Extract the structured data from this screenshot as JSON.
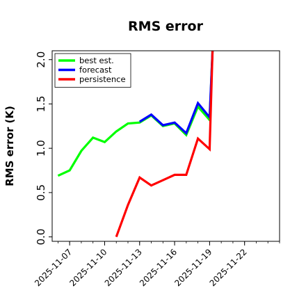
{
  "chart_data": {
    "type": "line",
    "title": "RMS error",
    "xlabel": "",
    "ylabel": "RMS error (K)",
    "ylim": [
      -0.05,
      2.1
    ],
    "xlim": [
      "2025-11-05T12:00",
      "2025-11-25T00:00"
    ],
    "yticks": [
      0.0,
      0.5,
      1.0,
      1.5,
      2.0
    ],
    "ytick_labels": [
      "0.0",
      "0.5",
      "1.0",
      "1.5",
      "2.0"
    ],
    "xticks": [
      "2025-11-07",
      "2025-11-10",
      "2025-11-13",
      "2025-11-16",
      "2025-11-19",
      "2025-11-22"
    ],
    "xtick_labels": [
      "2025-11-07",
      "2025-11-10",
      "2025-11-13",
      "2025-11-16",
      "2025-11-19",
      "2025-11-22"
    ],
    "highlighted_xtick": "2025-11-13",
    "highlight_color": "#228B22",
    "grid": false,
    "legend": "top-left",
    "series": [
      {
        "name": "best est.",
        "color": "#00ff00",
        "points": [
          [
            "2025-11-06T00:00",
            0.69
          ],
          [
            "2025-11-07T00:00",
            0.75
          ],
          [
            "2025-11-08T00:00",
            0.97
          ],
          [
            "2025-11-09T00:00",
            1.12
          ],
          [
            "2025-11-10T00:00",
            1.07
          ],
          [
            "2025-11-11T00:00",
            1.19
          ],
          [
            "2025-11-12T00:00",
            1.28
          ],
          [
            "2025-11-13T00:00",
            1.29
          ],
          [
            "2025-11-14T00:00",
            1.37
          ],
          [
            "2025-11-15T00:00",
            1.25
          ],
          [
            "2025-11-16T00:00",
            1.28
          ],
          [
            "2025-11-17T00:00",
            1.15
          ],
          [
            "2025-11-18T00:00",
            1.47
          ],
          [
            "2025-11-19T00:00",
            1.32
          ],
          [
            "2025-11-19T06:00",
            2.1
          ]
        ]
      },
      {
        "name": "forecast",
        "color": "#0000ff",
        "points": [
          [
            "2025-11-13T00:00",
            1.3
          ],
          [
            "2025-11-14T00:00",
            1.38
          ],
          [
            "2025-11-15T00:00",
            1.26
          ],
          [
            "2025-11-16T00:00",
            1.29
          ],
          [
            "2025-11-17T00:00",
            1.17
          ],
          [
            "2025-11-18T00:00",
            1.51
          ],
          [
            "2025-11-19T00:00",
            1.35
          ],
          [
            "2025-11-19T06:00",
            2.1
          ]
        ]
      },
      {
        "name": "persistence",
        "color": "#ff0000",
        "points": [
          [
            "2025-11-11T00:00",
            0.0
          ],
          [
            "2025-11-12T00:00",
            0.36
          ],
          [
            "2025-11-13T00:00",
            0.67
          ],
          [
            "2025-11-14T00:00",
            0.58
          ],
          [
            "2025-11-15T00:00",
            0.64
          ],
          [
            "2025-11-16T00:00",
            0.7
          ],
          [
            "2025-11-17T00:00",
            0.7
          ],
          [
            "2025-11-18T00:00",
            1.11
          ],
          [
            "2025-11-19T00:00",
            0.99
          ],
          [
            "2025-11-19T06:00",
            2.1
          ]
        ]
      }
    ]
  }
}
